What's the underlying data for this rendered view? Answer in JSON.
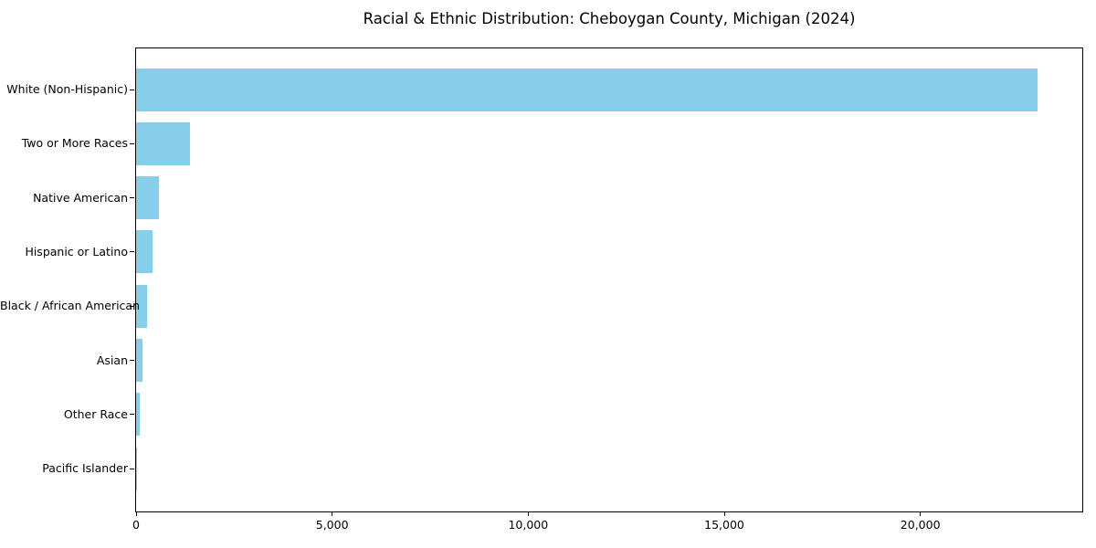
{
  "chart_data": {
    "type": "bar",
    "orientation": "horizontal",
    "title": "Racial & Ethnic Distribution: Cheboygan County, Michigan (2024)",
    "categories": [
      "White (Non-Hispanic)",
      "Two or More Races",
      "Native American",
      "Hispanic or Latino",
      "Black / African American",
      "Asian",
      "Other Race",
      "Pacific Islander"
    ],
    "values": [
      22980,
      1380,
      580,
      420,
      270,
      170,
      90,
      10
    ],
    "xlabel": "",
    "ylabel": "",
    "xlim": [
      0,
      24130
    ],
    "xticks": {
      "values": [
        0,
        5000,
        10000,
        15000,
        20000
      ],
      "labels": [
        "0",
        "5,000",
        "10,000",
        "15,000",
        "20,000"
      ]
    },
    "bar_color": "#87CEEB",
    "background_color": "#FFFFFF",
    "spine_color": "#000000",
    "grid": false,
    "legend_position": "none"
  }
}
